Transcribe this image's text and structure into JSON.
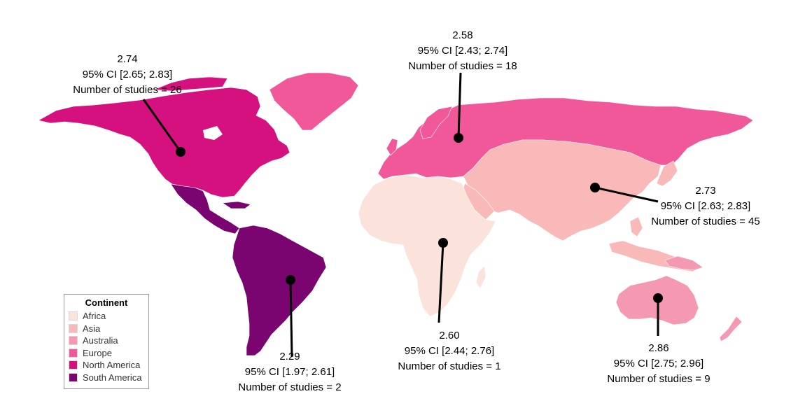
{
  "colors": {
    "Africa": "#fbe3dc",
    "Asia": "#f8b9b8",
    "Australia": "#f598b2",
    "Europe": "#f1589a",
    "North America": "#d4117f",
    "South America": "#7a0470",
    "marker": "#000000"
  },
  "legend": {
    "title": "Continent",
    "items": [
      "Africa",
      "Asia",
      "Australia",
      "Europe",
      "North America",
      "South America"
    ]
  },
  "annotations": {
    "north_america": {
      "value": "2.74",
      "ci": "95% CI [2.65; 2.83]",
      "studies": "Number of studies = 26"
    },
    "europe": {
      "value": "2.58",
      "ci": "95% CI [2.43; 2.74]",
      "studies": "Number of studies = 18"
    },
    "asia": {
      "value": "2.73",
      "ci": "95% CI [2.63; 2.83]",
      "studies": "Number of studies = 45"
    },
    "africa": {
      "value": "2.60",
      "ci": "95% CI [2.44; 2.76]",
      "studies": "Number of studies = 1"
    },
    "south_america": {
      "value": "2.29",
      "ci": "95% CI [1.97; 2.61]",
      "studies": "Number of studies = 2"
    },
    "australia": {
      "value": "2.86",
      "ci": "95% CI [2.75; 2.96]",
      "studies": "Number of studies = 9"
    }
  }
}
